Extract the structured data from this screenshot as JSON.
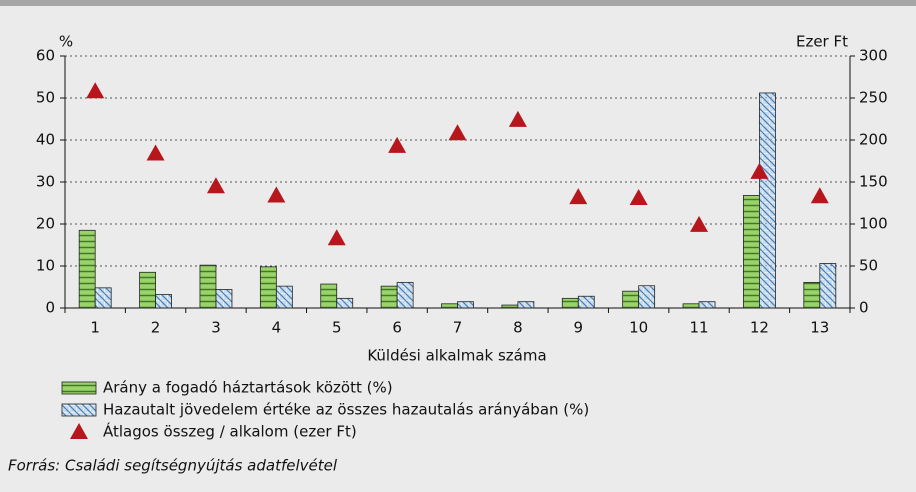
{
  "chart_data": {
    "type": "bar",
    "categories": [
      "1",
      "2",
      "3",
      "4",
      "5",
      "6",
      "7",
      "8",
      "9",
      "10",
      "11",
      "12",
      "13"
    ],
    "x_label": "Küldési alkalmak száma",
    "y_label": "%",
    "y2_label": "Ezer Ft",
    "ylim": [
      0,
      60
    ],
    "yticks": [
      0,
      10,
      20,
      30,
      40,
      50,
      60
    ],
    "y2lim": [
      0,
      300
    ],
    "y2ticks": [
      0,
      50,
      100,
      150,
      200,
      250,
      300
    ],
    "grid": true,
    "series": [
      {
        "name": "Arány a fogadó háztartások között (%)",
        "type": "bar",
        "color": "#9bd36b",
        "values": [
          18.5,
          8.5,
          10.2,
          9.8,
          5.7,
          5.2,
          1.0,
          0.7,
          2.3,
          4.0,
          1.0,
          26.8,
          6.1
        ]
      },
      {
        "name": "Hazautalt jövedelem értéke az összes hazautalás arányában (%)",
        "type": "bar",
        "color": "#c6dcf2",
        "values": [
          4.8,
          3.2,
          4.4,
          5.2,
          2.3,
          6.1,
          1.5,
          1.5,
          2.8,
          5.3,
          1.5,
          51.2,
          10.6
        ]
      },
      {
        "name": "Átlagos összeg / alkalom (ezer Ft)",
        "type": "scatter",
        "axis": "y2",
        "color": "#b8161d",
        "values": [
          258,
          184,
          145,
          134,
          83,
          193,
          208,
          224,
          132,
          131,
          99,
          162,
          133
        ]
      }
    ],
    "source": "Forrás: Családi segítségnyújtás adatfelvétel"
  }
}
